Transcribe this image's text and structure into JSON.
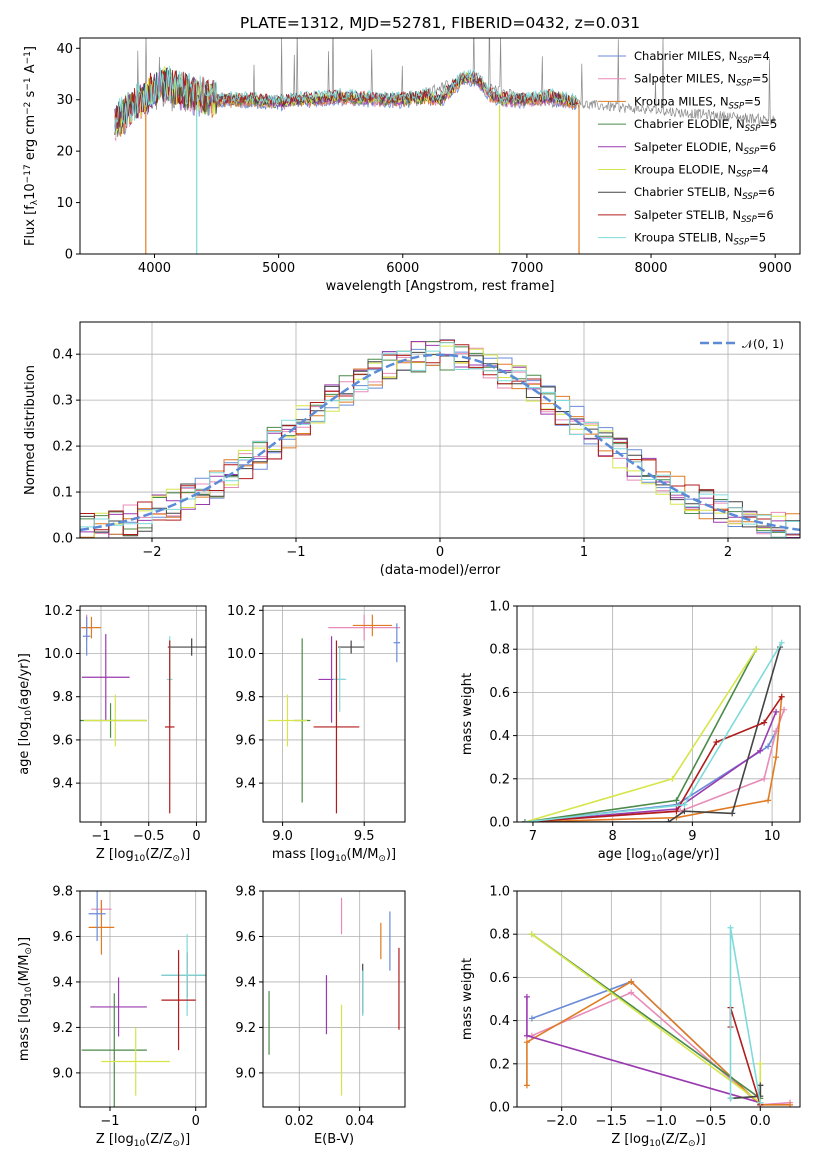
{
  "figure_title": "PLATE=1312, MJD=52781, FIBERID=0432, z=0.031",
  "series": [
    {
      "name": "Chabrier MILES, N",
      "sub": "SSP",
      "suffix": "=4",
      "color": "#6a8bd8"
    },
    {
      "name": "Salpeter MILES, N",
      "sub": "SSP",
      "suffix": "=5",
      "color": "#e88bb8"
    },
    {
      "name": "Kroupa MILES, N",
      "sub": "SSP",
      "suffix": "=5",
      "color": "#e07b24"
    },
    {
      "name": "Chabrier ELODIE, N",
      "sub": "SSP",
      "suffix": "=5",
      "color": "#4a8a4a"
    },
    {
      "name": "Salpeter ELODIE, N",
      "sub": "SSP",
      "suffix": "=6",
      "color": "#9a3ab0"
    },
    {
      "name": "Kroupa ELODIE, N",
      "sub": "SSP",
      "suffix": "=4",
      "color": "#d6e64a"
    },
    {
      "name": "Chabrier STELIB, N",
      "sub": "SSP",
      "suffix": "=6",
      "color": "#444444"
    },
    {
      "name": "Salpeter STELIB, N",
      "sub": "SSP",
      "suffix": "=6",
      "color": "#b01c1c"
    },
    {
      "name": "Kroupa STELIB, N",
      "sub": "SSP",
      "suffix": "=5",
      "color": "#7fdada"
    }
  ],
  "chart_data": [
    {
      "id": "spectrum",
      "type": "line",
      "xlabel": "wavelength [Angstrom, rest frame]",
      "ylabel_parts": [
        "Flux [f",
        "λ",
        "10",
        "−17",
        " erg cm",
        "−2",
        " s",
        "−1",
        " A",
        "−1",
        "]"
      ],
      "xlim": [
        3400,
        9200
      ],
      "ylim": [
        0,
        42
      ],
      "xticks": [
        4000,
        5000,
        6000,
        7000,
        8000,
        9000
      ],
      "yticks": [
        0,
        10,
        20,
        30,
        40
      ],
      "grid": false,
      "legend": "top-right",
      "continuum": {
        "x": [
          3700,
          3800,
          3900,
          4000,
          4100,
          4300,
          4500,
          4800,
          5000,
          5200,
          5500,
          5800,
          6000,
          6200,
          6300,
          6500,
          6600,
          6700,
          6800,
          7000,
          7200,
          7400
        ],
        "y": [
          26,
          28,
          30,
          32,
          33,
          31,
          30,
          30,
          29.5,
          30,
          30.5,
          30,
          30,
          30.5,
          30,
          34.5,
          34,
          31,
          30,
          30,
          30.5,
          29.5
        ]
      },
      "spikes": [
        {
          "x": 3930,
          "y": 0,
          "series": 2
        },
        {
          "x": 4340,
          "y": 0,
          "series": 8
        },
        {
          "x": 6780,
          "y": 0,
          "series": 5
        },
        {
          "x": 7420,
          "y": 0,
          "series": 2
        }
      ],
      "residual_curve": {
        "x": [
          3700,
          3800,
          4000,
          4500,
          5000,
          5500,
          6000,
          6500,
          7000,
          7500,
          8000,
          8500,
          9000
        ],
        "y": [
          26,
          29,
          31,
          30,
          29.5,
          30,
          30,
          34,
          30,
          29,
          28,
          27,
          26
        ]
      }
    },
    {
      "id": "residual-histogram",
      "type": "bar",
      "xlabel": "(data-model)/error",
      "ylabel": "Normed distribution",
      "xlim": [
        -2.5,
        2.5
      ],
      "ylim": [
        0,
        0.47
      ],
      "xticks": [
        -2,
        -1,
        0,
        1,
        2
      ],
      "yticks": [
        0.0,
        0.1,
        0.2,
        0.3,
        0.4
      ],
      "grid": true,
      "legend": "top-right",
      "gaussian_label": "𝒩(0, 1)",
      "gaussian_color": "#5b8bd6",
      "bin_width": 0.1
    },
    {
      "id": "age-vs-Z",
      "type": "scatter",
      "xlabel_parts": [
        "Z [log",
        "10",
        "(Z/Z",
        "⊙",
        ")]"
      ],
      "ylabel_parts": [
        "age  [log",
        "10",
        "(age/yr)]"
      ],
      "xlim": [
        -1.22,
        0.1
      ],
      "ylim": [
        9.22,
        10.22
      ],
      "xticks": [
        -1,
        -0.5,
        0
      ],
      "yticks": [
        9.4,
        9.6,
        9.8,
        10.0,
        10.2
      ],
      "grid": true,
      "points": [
        {
          "x": -1.15,
          "xerr": 0.06,
          "y": 10.12,
          "yerr": 0.06,
          "series": 1
        },
        {
          "x": -1.1,
          "xerr": 0.1,
          "y": 10.12,
          "yerr": 0.05,
          "series": 2
        },
        {
          "x": -1.15,
          "xerr": 0.04,
          "y": 10.08,
          "yerr": 0.09,
          "series": 0
        },
        {
          "x": -0.95,
          "xerr": 0.25,
          "y": 9.89,
          "yerr": 0.2,
          "series": 4
        },
        {
          "x": -0.9,
          "xerr": 0.38,
          "y": 9.69,
          "yerr": 0.08,
          "series": 3
        },
        {
          "x": -0.85,
          "xerr": 0.33,
          "y": 9.69,
          "yerr": 0.12,
          "series": 5
        },
        {
          "x": -0.05,
          "xerr": 0.25,
          "y": 10.03,
          "yerr": 0.04,
          "series": 6
        },
        {
          "x": -0.28,
          "xerr": 0.03,
          "y": 9.88,
          "yerr": 0.2,
          "series": 8
        },
        {
          "x": -0.28,
          "xerr": 0.05,
          "y": 9.66,
          "yerr": 0.4,
          "series": 7
        }
      ]
    },
    {
      "id": "age-vs-mass",
      "type": "scatter",
      "xlabel_parts": [
        "mass [log",
        "10",
        "(M/M",
        "⊙",
        ")]"
      ],
      "ylabel_parts": [],
      "xlim": [
        8.88,
        9.75
      ],
      "ylim": [
        9.22,
        10.22
      ],
      "xticks": [
        9.0,
        9.5
      ],
      "yticks": [
        9.4,
        9.6,
        9.8,
        10.0,
        10.2
      ],
      "grid": true,
      "points": [
        {
          "x": 9.5,
          "xerr": 0.22,
          "y": 10.12,
          "yerr": 0.06,
          "series": 1
        },
        {
          "x": 9.55,
          "xerr": 0.12,
          "y": 10.13,
          "yerr": 0.05,
          "series": 2
        },
        {
          "x": 9.7,
          "xerr": 0.02,
          "y": 10.05,
          "yerr": 0.09,
          "series": 0
        },
        {
          "x": 9.3,
          "xerr": 0.08,
          "y": 9.88,
          "yerr": 0.2,
          "series": 4
        },
        {
          "x": 9.12,
          "xerr": 0.05,
          "y": 9.69,
          "yerr": 0.38,
          "series": 3
        },
        {
          "x": 9.03,
          "xerr": 0.12,
          "y": 9.69,
          "yerr": 0.12,
          "series": 5
        },
        {
          "x": 9.42,
          "xerr": 0.08,
          "y": 10.03,
          "yerr": 0.03,
          "series": 6
        },
        {
          "x": 9.35,
          "xerr": 0.04,
          "y": 9.88,
          "yerr": 0.15,
          "series": 8
        },
        {
          "x": 9.33,
          "xerr": 0.14,
          "y": 9.66,
          "yerr": 0.4,
          "series": 7
        }
      ]
    },
    {
      "id": "mass-weight-vs-age",
      "type": "line",
      "xlabel_parts": [
        "age  [log",
        "10",
        "(age/yr)]"
      ],
      "ylabel": "mass weight",
      "xlim": [
        6.8,
        10.35
      ],
      "ylim": [
        0,
        1
      ],
      "xticks": [
        7,
        8,
        9,
        10
      ],
      "yticks": [
        0.0,
        0.2,
        0.4,
        0.6,
        0.8,
        1.0
      ],
      "grid": true,
      "lines": [
        {
          "series": 0,
          "x": [
            6.9,
            8.8,
            9.95,
            10.05
          ],
          "y": [
            0.0,
            0.08,
            0.35,
            0.42
          ]
        },
        {
          "series": 1,
          "x": [
            6.9,
            8.85,
            9.9,
            10.05,
            10.15
          ],
          "y": [
            0.0,
            0.05,
            0.2,
            0.42,
            0.52
          ]
        },
        {
          "series": 2,
          "x": [
            6.9,
            8.8,
            9.95,
            10.05,
            10.12
          ],
          "y": [
            0.0,
            0.02,
            0.1,
            0.3,
            0.58
          ]
        },
        {
          "series": 3,
          "x": [
            6.9,
            8.8,
            9.8
          ],
          "y": [
            0.0,
            0.1,
            0.8
          ]
        },
        {
          "series": 4,
          "x": [
            6.9,
            8.8,
            9.85,
            10.05
          ],
          "y": [
            0.0,
            0.06,
            0.33,
            0.51
          ]
        },
        {
          "series": 5,
          "x": [
            6.9,
            8.75,
            9.8
          ],
          "y": [
            0.0,
            0.2,
            0.8
          ]
        },
        {
          "series": 6,
          "x": [
            6.9,
            8.7,
            8.9,
            9.5,
            10.1
          ],
          "y": [
            0.0,
            0.0,
            0.05,
            0.04,
            0.81
          ]
        },
        {
          "series": 7,
          "x": [
            6.9,
            8.8,
            9.3,
            9.9,
            10.12
          ],
          "y": [
            0.0,
            0.05,
            0.37,
            0.46,
            0.58
          ]
        },
        {
          "series": 8,
          "x": [
            6.9,
            8.9,
            10.12
          ],
          "y": [
            0.0,
            0.08,
            0.83
          ]
        }
      ]
    },
    {
      "id": "mass-vs-Z",
      "type": "scatter",
      "xlabel_parts": [
        "Z [log",
        "10",
        "(Z/Z",
        "⊙",
        ")]"
      ],
      "ylabel_parts": [
        "mass [log",
        "10",
        "(M/M",
        "⊙",
        ")]"
      ],
      "xlim": [
        -1.35,
        0.12
      ],
      "ylim": [
        8.85,
        9.8
      ],
      "xticks": [
        -1,
        0
      ],
      "yticks": [
        9.0,
        9.2,
        9.4,
        9.6,
        9.8
      ],
      "grid": true,
      "points": [
        {
          "x": -1.1,
          "xerr": 0.12,
          "y": 9.72,
          "yerr": 0.04,
          "series": 1
        },
        {
          "x": -1.1,
          "xerr": 0.15,
          "y": 9.64,
          "yerr": 0.12,
          "series": 2
        },
        {
          "x": -1.15,
          "xerr": 0.1,
          "y": 9.7,
          "yerr": 0.12,
          "series": 0
        },
        {
          "x": -0.9,
          "xerr": 0.33,
          "y": 9.29,
          "yerr": 0.13,
          "series": 4
        },
        {
          "x": -0.95,
          "xerr": 0.38,
          "y": 9.1,
          "yerr": 0.25,
          "series": 3
        },
        {
          "x": -0.7,
          "xerr": 0.4,
          "y": 9.05,
          "yerr": 0.15,
          "series": 5
        },
        {
          "x": -0.1,
          "xerr": 0.3,
          "y": 9.43,
          "yerr": 0.1,
          "series": 6
        },
        {
          "x": -0.1,
          "xerr": 0.3,
          "y": 9.43,
          "yerr": 0.18,
          "series": 8
        },
        {
          "x": -0.2,
          "xerr": 0.2,
          "y": 9.32,
          "yerr": 0.22,
          "series": 7
        }
      ]
    },
    {
      "id": "mass-vs-ebv",
      "type": "scatter",
      "xlabel": "E(B-V)",
      "ylabel_parts": [],
      "xlim": [
        0.008,
        0.055
      ],
      "ylim": [
        8.85,
        9.8
      ],
      "xticks": [
        0.02,
        0.04
      ],
      "yticks": [
        9.0,
        9.2,
        9.4,
        9.6,
        9.8
      ],
      "grid": true,
      "points": [
        {
          "x": 0.034,
          "xerr": 0,
          "y": 9.69,
          "yerr": 0.08,
          "series": 1
        },
        {
          "x": 0.047,
          "xerr": 0,
          "y": 9.58,
          "yerr": 0.08,
          "series": 2
        },
        {
          "x": 0.05,
          "xerr": 0,
          "y": 9.58,
          "yerr": 0.13,
          "series": 0
        },
        {
          "x": 0.029,
          "xerr": 0,
          "y": 9.3,
          "yerr": 0.13,
          "series": 4
        },
        {
          "x": 0.01,
          "xerr": 0,
          "y": 9.22,
          "yerr": 0.14,
          "series": 3
        },
        {
          "x": 0.034,
          "xerr": 0,
          "y": 9.1,
          "yerr": 0.2,
          "series": 5
        },
        {
          "x": 0.041,
          "xerr": 0,
          "y": 9.37,
          "yerr": 0.11,
          "series": 6
        },
        {
          "x": 0.041,
          "xerr": 0,
          "y": 9.35,
          "yerr": 0.1,
          "series": 8
        },
        {
          "x": 0.053,
          "xerr": 0,
          "y": 9.37,
          "yerr": 0.18,
          "series": 7
        }
      ]
    },
    {
      "id": "mass-weight-vs-Z",
      "type": "line",
      "xlabel_parts": [
        "Z [log",
        "10",
        "(Z/Z",
        "⊙",
        ")]"
      ],
      "ylabel": "mass weight",
      "xlim": [
        -2.45,
        0.4
      ],
      "ylim": [
        0,
        1
      ],
      "xticks": [
        -2.0,
        -1.5,
        -1.0,
        -0.5,
        0.0
      ],
      "xtick_labels": [
        "−2.0",
        "−1.5",
        "−1.0",
        "−0.5",
        "0.0"
      ],
      "yticks": [
        0.0,
        0.2,
        0.4,
        0.6,
        0.8,
        1.0
      ],
      "grid": true,
      "lines": [
        {
          "series": 0,
          "x": [
            -2.3,
            -1.3,
            0.0
          ],
          "y": [
            0.41,
            0.58,
            0.01
          ]
        },
        {
          "series": 1,
          "x": [
            -2.3,
            -1.3,
            0.0,
            0.3
          ],
          "y": [
            0.33,
            0.53,
            0.01,
            0.02
          ]
        },
        {
          "series": 2,
          "x": [
            -2.35,
            -2.35,
            -1.3,
            0.0,
            0.3
          ],
          "y": [
            0.1,
            0.3,
            0.58,
            0.01,
            0.01
          ]
        },
        {
          "series": 3,
          "x": [
            -2.3,
            0.0,
            0.0
          ],
          "y": [
            0.8,
            0.04,
            0.1
          ]
        },
        {
          "series": 4,
          "x": [
            -2.35,
            -2.35,
            0.0
          ],
          "y": [
            0.51,
            0.33,
            0.02
          ]
        },
        {
          "series": 5,
          "x": [
            -2.3,
            0.0,
            0.0
          ],
          "y": [
            0.8,
            0.02,
            0.2
          ]
        },
        {
          "series": 6,
          "x": [
            -0.3,
            0.0,
            0.0
          ],
          "y": [
            0.04,
            0.05,
            0.1
          ]
        },
        {
          "series": 7,
          "x": [
            -0.3,
            -0.3,
            0.0
          ],
          "y": [
            0.37,
            0.46,
            0.01
          ]
        },
        {
          "series": 8,
          "x": [
            -0.3,
            -0.3,
            0.0
          ],
          "y": [
            0.04,
            0.83,
            0.02
          ]
        }
      ]
    }
  ]
}
